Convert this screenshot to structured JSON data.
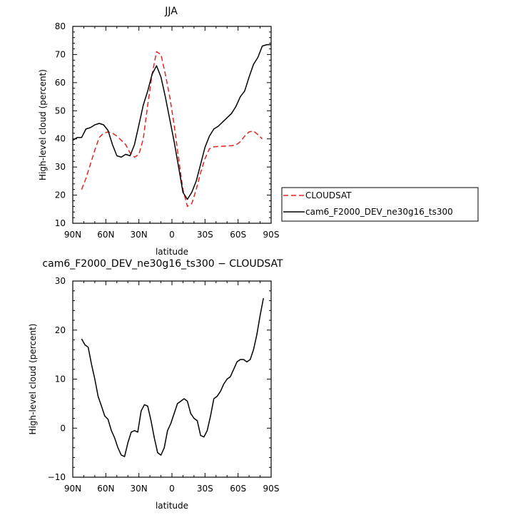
{
  "chart_data": [
    {
      "type": "line",
      "title": "JJA",
      "xlabel": "latitude",
      "ylabel": "High-level cloud (percent)",
      "xlim": [
        90,
        -90
      ],
      "ylim": [
        10,
        80
      ],
      "xticks": [
        90,
        60,
        30,
        0,
        -30,
        -60,
        -90
      ],
      "xtick_labels": [
        "90N",
        "60N",
        "30N",
        "0",
        "30S",
        "60S",
        "90S"
      ],
      "yticks": [
        10,
        20,
        30,
        40,
        50,
        60,
        70,
        80
      ],
      "ytick_labels": [
        "10",
        "20",
        "30",
        "40",
        "50",
        "60",
        "70",
        "80"
      ],
      "legend": "right",
      "series": [
        {
          "name": "CLOUDSAT",
          "color": "#e8211d",
          "dash": "dashed",
          "x": [
            82,
            78,
            74,
            70,
            66,
            62,
            58,
            54,
            50,
            46,
            42,
            38,
            34,
            30,
            26,
            22,
            18,
            14,
            10,
            6,
            2,
            -2,
            -6,
            -10,
            -14,
            -18,
            -22,
            -26,
            -30,
            -34,
            -38,
            -42,
            -46,
            -50,
            -54,
            -58,
            -62,
            -66,
            -70,
            -74,
            -78,
            -82
          ],
          "y": [
            22,
            26,
            31,
            36,
            40.5,
            42,
            42.5,
            42,
            41,
            39.5,
            38,
            35,
            33.5,
            34.5,
            40,
            52,
            63,
            71,
            70,
            63,
            55,
            45,
            33,
            22,
            16,
            17,
            22,
            28,
            33,
            36.5,
            37.2,
            37.3,
            37.4,
            37.5,
            37.6,
            37.8,
            39,
            41,
            42.5,
            42.8,
            41.5,
            40
          ]
        },
        {
          "name": "cam6_F2000_DEV_ne30g16_ts300",
          "color": "#000000",
          "dash": "solid",
          "x": [
            90,
            86,
            82,
            78,
            74,
            70,
            66,
            62,
            58,
            54,
            50,
            46,
            42,
            38,
            34,
            30,
            26,
            22,
            18,
            14,
            10,
            6,
            2,
            -2,
            -6,
            -10,
            -14,
            -18,
            -22,
            -26,
            -30,
            -34,
            -38,
            -42,
            -46,
            -50,
            -54,
            -58,
            -62,
            -66,
            -70,
            -74,
            -78,
            -82,
            -86,
            -88,
            -90
          ],
          "y": [
            39.5,
            40.5,
            40.5,
            43.5,
            44,
            45,
            45.5,
            45,
            43,
            38,
            34,
            33.5,
            34.5,
            34,
            38,
            45,
            52,
            57,
            63,
            66,
            62,
            55,
            47,
            39,
            30,
            21,
            18.5,
            21,
            25,
            31,
            37,
            41,
            43.5,
            44.5,
            46,
            47.5,
            49,
            51.5,
            55,
            57,
            62,
            66.5,
            69,
            73,
            73.5,
            73.5,
            73.5
          ]
        }
      ]
    },
    {
      "type": "line",
      "title": "cam6_F2000_DEV_ne30g16_ts300 − CLOUDSAT",
      "xlabel": "latitude",
      "ylabel": "High-level cloud (percent)",
      "xlim": [
        90,
        -90
      ],
      "ylim": [
        -10,
        30
      ],
      "xticks": [
        90,
        60,
        30,
        0,
        -30,
        -60,
        -90
      ],
      "xtick_labels": [
        "90N",
        "60N",
        "30N",
        "0",
        "30S",
        "60S",
        "90S"
      ],
      "yticks": [
        -10,
        0,
        10,
        20,
        30
      ],
      "ytick_labels": [
        "−10",
        "0",
        "10",
        "20",
        "30"
      ],
      "series": [
        {
          "color": "#000000",
          "dash": "solid",
          "x": [
            82,
            79,
            76,
            73,
            70,
            67,
            64,
            61,
            58,
            55,
            52,
            49,
            46,
            43,
            40,
            37,
            34,
            31,
            28,
            25,
            22,
            19,
            16,
            13,
            10,
            7,
            4,
            1,
            -2,
            -5,
            -8,
            -11,
            -14,
            -17,
            -20,
            -23,
            -26,
            -29,
            -32,
            -35,
            -38,
            -41,
            -44,
            -47,
            -50,
            -53,
            -56,
            -59,
            -62,
            -65,
            -68,
            -71,
            -74,
            -77,
            -80,
            -83
          ],
          "y": [
            18.2,
            17,
            16.5,
            13,
            10,
            6.5,
            4.5,
            2.5,
            1.8,
            -0.5,
            -2,
            -4,
            -5.5,
            -5.8,
            -3,
            -0.8,
            -0.5,
            -0.8,
            3.5,
            4.8,
            4.5,
            1.5,
            -2,
            -5,
            -5.5,
            -4,
            -0.5,
            1,
            3,
            5,
            5.5,
            6,
            5.5,
            3,
            2,
            1.5,
            -1.5,
            -1.8,
            -0.5,
            2.5,
            6,
            6.5,
            7.5,
            9,
            10,
            10.5,
            12,
            13.5,
            14,
            14,
            13.5,
            14,
            16,
            19,
            23,
            26.5
          ]
        }
      ]
    }
  ]
}
